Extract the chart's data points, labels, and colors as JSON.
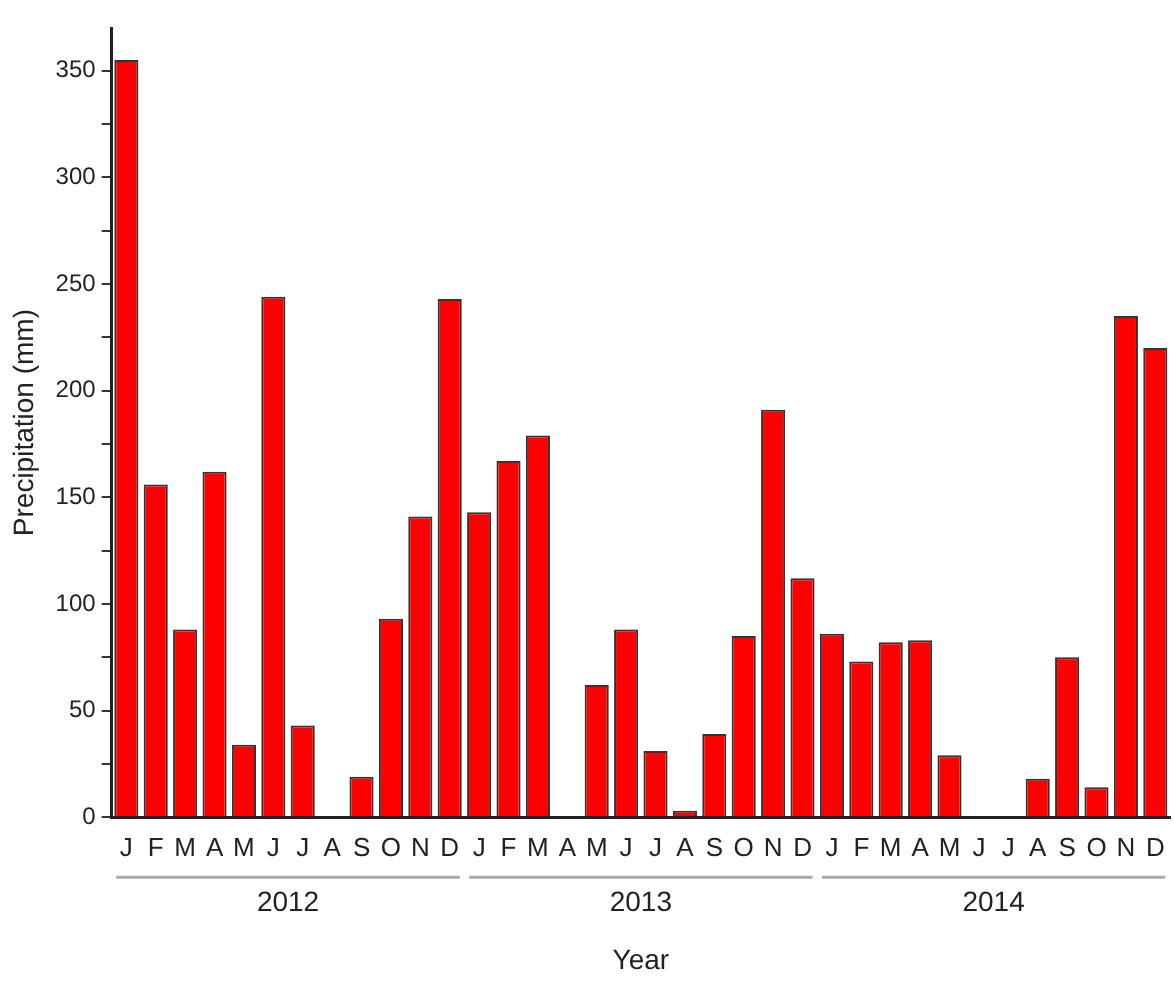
{
  "chart_data": {
    "type": "bar",
    "xlabel": "Year",
    "ylabel": "Precipitation (mm)",
    "categories": [
      "J",
      "F",
      "M",
      "A",
      "M",
      "J",
      "J",
      "A",
      "S",
      "O",
      "N",
      "D",
      "J",
      "F",
      "M",
      "A",
      "M",
      "J",
      "J",
      "A",
      "S",
      "O",
      "N",
      "D",
      "J",
      "F",
      "M",
      "A",
      "M",
      "J",
      "J",
      "A",
      "S",
      "O",
      "N",
      "D"
    ],
    "values": [
      355,
      156,
      88,
      162,
      34,
      244,
      43,
      0,
      19,
      93,
      141,
      243,
      143,
      167,
      179,
      0,
      62,
      88,
      31,
      3,
      39,
      85,
      191,
      112,
      86,
      73,
      82,
      83,
      29,
      0,
      0,
      18,
      75,
      14,
      235,
      220
    ],
    "color": "#ff0000",
    "ylim": [
      0,
      370
    ],
    "yticks": [
      0,
      {
        "value": 25,
        "label": null
      },
      50,
      {
        "value": 75,
        "label": null
      },
      100,
      {
        "value": 125,
        "label": null
      },
      150,
      {
        "value": 175,
        "label": null
      },
      200,
      {
        "value": 225,
        "label": null
      },
      250,
      {
        "value": 275,
        "label": null
      },
      300,
      {
        "value": 325,
        "label": null
      },
      350
    ],
    "annotations": [
      "2012",
      "2013",
      "2014"
    ],
    "grid": false,
    "legend": false
  }
}
